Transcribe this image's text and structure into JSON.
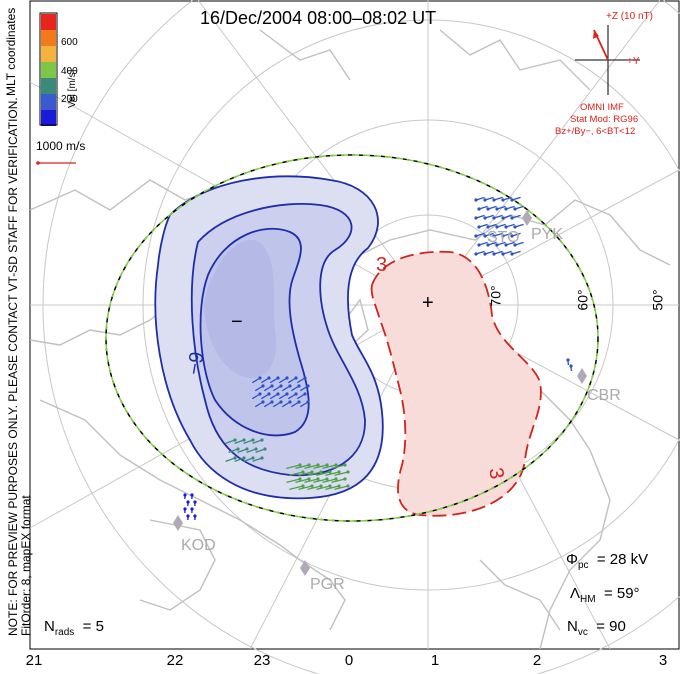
{
  "title": "16/Dec/2004 08:00–08:02 UT",
  "side_note": "NOTE: FOR PREVIEW PURPOSES ONLY. PLEASE CONTACT VT-SD STAFF FOR VERIFICATION.",
  "fit_order": "FitOrder: 8, mapEX format",
  "coords_label": "MLT coordinates",
  "colorbar": {
    "label": "Vel [m/s]",
    "ticks": [
      "600",
      "400",
      "200"
    ],
    "colors": [
      "#e8251d",
      "#f07a1c",
      "#f4b43c",
      "#7ec64a",
      "#3a8a7a",
      "#3a5ad0",
      "#1a1ad8"
    ]
  },
  "scale_vector": "1000 m/s",
  "imf": {
    "z_label": "+Z (10 nT)",
    "y_label": "+Y",
    "omni": "OMNI IMF",
    "model": "Stat Mod: RG96",
    "condition": "Bz+/By−, 6<BT<12"
  },
  "hour_labels": [
    "21",
    "22",
    "23",
    "0",
    "1",
    "2",
    "3"
  ],
  "lat_labels": [
    "70°",
    "60°",
    "50°"
  ],
  "contour_labels": [
    "−9",
    "3",
    "3"
  ],
  "extremes": {
    "min": "−",
    "max": "+"
  },
  "radars": [
    "STO",
    "PYK",
    "CBR",
    "KOD",
    "PGR"
  ],
  "phi_pc": {
    "symbol": "Φ",
    "sub": "pc",
    "value": "= 28 kV"
  },
  "lambda_hm": {
    "symbol": "Λ",
    "sub": "HM",
    "value": "= 59°"
  },
  "n_vc": {
    "symbol": "N",
    "sub": "vc",
    "value": "= 90"
  },
  "n_rads": {
    "symbol": "N",
    "sub": "rads",
    "value": "= 5"
  },
  "colors": {
    "negative_fill": "#dcdff2",
    "negative_fill_inner": "#bfc4ea",
    "positive_fill": "#f7dcda",
    "negative_line": "#1e2ea8",
    "positive_line": "#d0241c",
    "map_land": "#c0c0c0",
    "boundary_green": "#7dd23c"
  }
}
